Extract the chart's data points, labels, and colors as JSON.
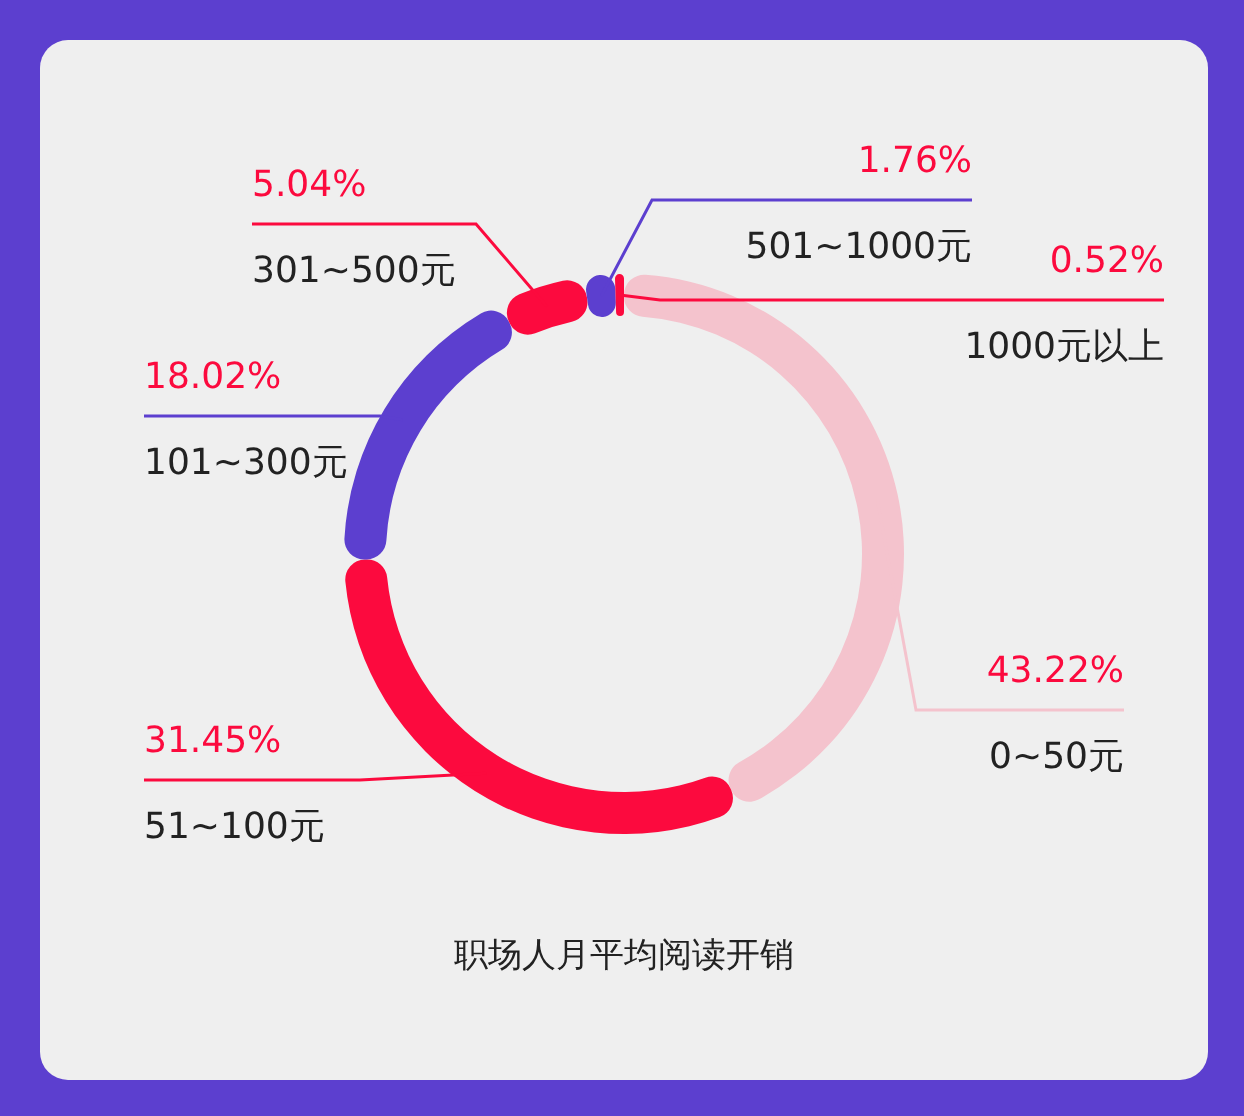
{
  "chart_data": {
    "type": "donut",
    "title": "职场人月平均阅读开销",
    "categories": [
      "0~50元",
      "51~100元",
      "101~300元",
      "301~500元",
      "501~1000元",
      "1000元以上"
    ],
    "values": [
      43.22,
      31.45,
      18.02,
      5.04,
      1.76,
      0.52
    ],
    "colors": [
      "#f4c3cd",
      "#fc0a3e",
      "#5c3fcf",
      "#fc0a3e",
      "#5c3fcf",
      "#fc0a3e"
    ],
    "value_labels": [
      "43.22%",
      "31.45%",
      "18.02%",
      "5.04%",
      "1.76%",
      "0.52%"
    ]
  }
}
